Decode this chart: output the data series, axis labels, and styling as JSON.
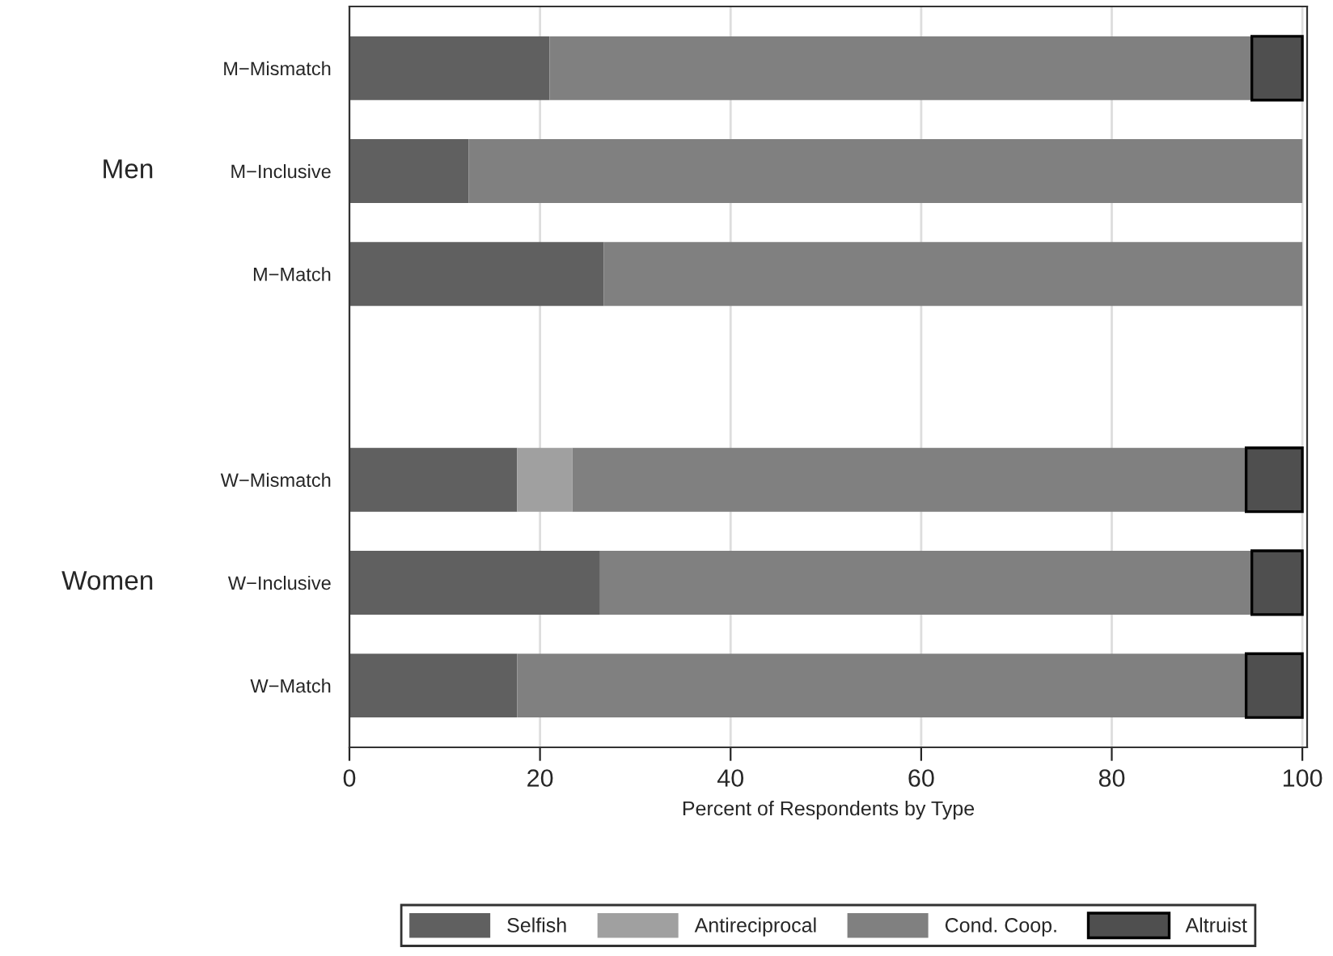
{
  "chart_data": {
    "type": "bar",
    "orientation": "horizontal",
    "stacked": true,
    "xlabel": "Percent of Respondents by Type",
    "categories": [
      "M−Mismatch",
      "M−Inclusive",
      "M−Match",
      null,
      "W−Mismatch",
      "W−Inclusive",
      "W−Match"
    ],
    "series": [
      {
        "name": "Selfish",
        "color": "#606060",
        "values": [
          21.0,
          12.5,
          26.7,
          null,
          17.6,
          26.3,
          17.6
        ]
      },
      {
        "name": "Antireciprocal",
        "color": "#a0a0a0",
        "values": [
          0,
          0,
          0,
          null,
          5.8,
          0,
          0
        ]
      },
      {
        "name": "Cond. Coop.",
        "color": "#808080",
        "values": [
          73.7,
          87.5,
          73.3,
          null,
          70.7,
          68.4,
          76.5
        ]
      },
      {
        "name": "Altruist",
        "color": "#4f4f4f",
        "values": [
          5.3,
          0,
          0,
          null,
          5.9,
          5.3,
          5.9
        ]
      }
    ],
    "xlim": [
      0,
      100.5
    ],
    "xticks": [
      0,
      20,
      40,
      60,
      80,
      100
    ],
    "grid": "x",
    "legend": "bottom",
    "annotations": [
      "Men",
      "Women"
    ]
  }
}
